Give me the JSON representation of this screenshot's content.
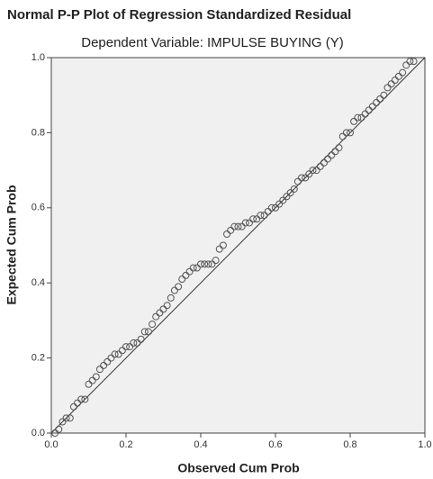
{
  "chart_data": {
    "type": "scatter",
    "title": "Normal P-P Plot of Regression Standardized Residual",
    "subtitle": "Dependent Variable: IMPULSE BUYING (Y)",
    "x_label": "Observed Cum Prob",
    "y_label": "Expected Cum Prob",
    "color": "#555555",
    "x": [
      0.01,
      0.02,
      0.03,
      0.04,
      0.05,
      0.06,
      0.07,
      0.08,
      0.09,
      0.1,
      0.11,
      0.12,
      0.13,
      0.14,
      0.15,
      0.16,
      0.17,
      0.18,
      0.19,
      0.2,
      0.21,
      0.22,
      0.23,
      0.24,
      0.25,
      0.26,
      0.27,
      0.28,
      0.29,
      0.3,
      0.31,
      0.32,
      0.33,
      0.34,
      0.35,
      0.36,
      0.37,
      0.38,
      0.39,
      0.4,
      0.41,
      0.42,
      0.43,
      0.44,
      0.45,
      0.46,
      0.47,
      0.48,
      0.49,
      0.5,
      0.51,
      0.52,
      0.53,
      0.54,
      0.55,
      0.56,
      0.57,
      0.58,
      0.59,
      0.6,
      0.61,
      0.62,
      0.63,
      0.64,
      0.65,
      0.66,
      0.67,
      0.68,
      0.69,
      0.7,
      0.71,
      0.72,
      0.73,
      0.74,
      0.75,
      0.76,
      0.77,
      0.78,
      0.79,
      0.8,
      0.81,
      0.82,
      0.83,
      0.84,
      0.85,
      0.86,
      0.87,
      0.88,
      0.89,
      0.9,
      0.91,
      0.92,
      0.93,
      0.94,
      0.95,
      0.96,
      0.97
    ],
    "values": [
      0.0,
      0.01,
      0.03,
      0.04,
      0.04,
      0.07,
      0.08,
      0.09,
      0.09,
      0.13,
      0.14,
      0.15,
      0.17,
      0.18,
      0.19,
      0.2,
      0.21,
      0.21,
      0.22,
      0.23,
      0.23,
      0.24,
      0.24,
      0.25,
      0.27,
      0.27,
      0.29,
      0.31,
      0.32,
      0.33,
      0.34,
      0.36,
      0.38,
      0.39,
      0.41,
      0.42,
      0.43,
      0.44,
      0.44,
      0.45,
      0.45,
      0.45,
      0.45,
      0.46,
      0.49,
      0.5,
      0.53,
      0.54,
      0.55,
      0.55,
      0.55,
      0.56,
      0.56,
      0.57,
      0.57,
      0.58,
      0.58,
      0.59,
      0.6,
      0.6,
      0.61,
      0.62,
      0.63,
      0.64,
      0.65,
      0.67,
      0.68,
      0.68,
      0.69,
      0.7,
      0.7,
      0.71,
      0.72,
      0.73,
      0.74,
      0.75,
      0.76,
      0.79,
      0.8,
      0.8,
      0.83,
      0.84,
      0.84,
      0.85,
      0.86,
      0.87,
      0.88,
      0.89,
      0.9,
      0.92,
      0.93,
      0.94,
      0.95,
      0.96,
      0.98,
      0.99,
      0.99
    ],
    "xlim": [
      0,
      1
    ],
    "ylim": [
      0,
      1
    ],
    "xticks": [
      {
        "value": 0,
        "label": "0.0"
      },
      0.2,
      0.4,
      0.6,
      0.8,
      {
        "value": 1,
        "label": "1.0"
      }
    ],
    "yticks": [
      {
        "value": 0,
        "label": "0.0"
      },
      0.2,
      0.4,
      0.6,
      0.8,
      {
        "value": 1,
        "label": "1.0"
      }
    ],
    "reference_line": true
  }
}
